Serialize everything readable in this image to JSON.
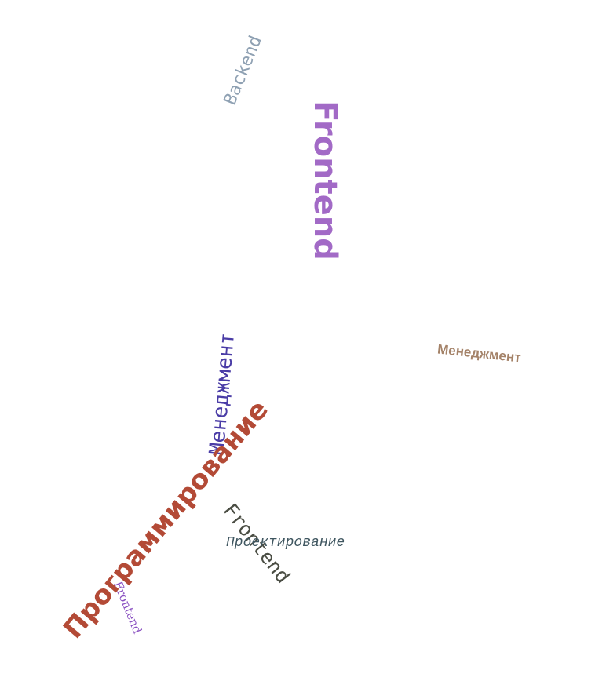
{
  "word_cloud": {
    "words": [
      {
        "id": "backend",
        "text": "Backend",
        "color": "#8fa1b3"
      },
      {
        "id": "frontend-large",
        "text": "Frontend",
        "color": "#a26ac6"
      },
      {
        "id": "management-right",
        "text": "Менеджмент",
        "color": "#a48268"
      },
      {
        "id": "management-vertical",
        "text": "Менеджмент",
        "color": "#4a3ca6"
      },
      {
        "id": "programming",
        "text": "Программирование",
        "color": "#b34a36"
      },
      {
        "id": "frontend-dark",
        "text": "Frontend",
        "color": "#4a4d43"
      },
      {
        "id": "design",
        "text": "Проектирование",
        "color": "#3f5660"
      },
      {
        "id": "frontend-small",
        "text": "Frontend",
        "color": "#8b52c2"
      }
    ]
  }
}
